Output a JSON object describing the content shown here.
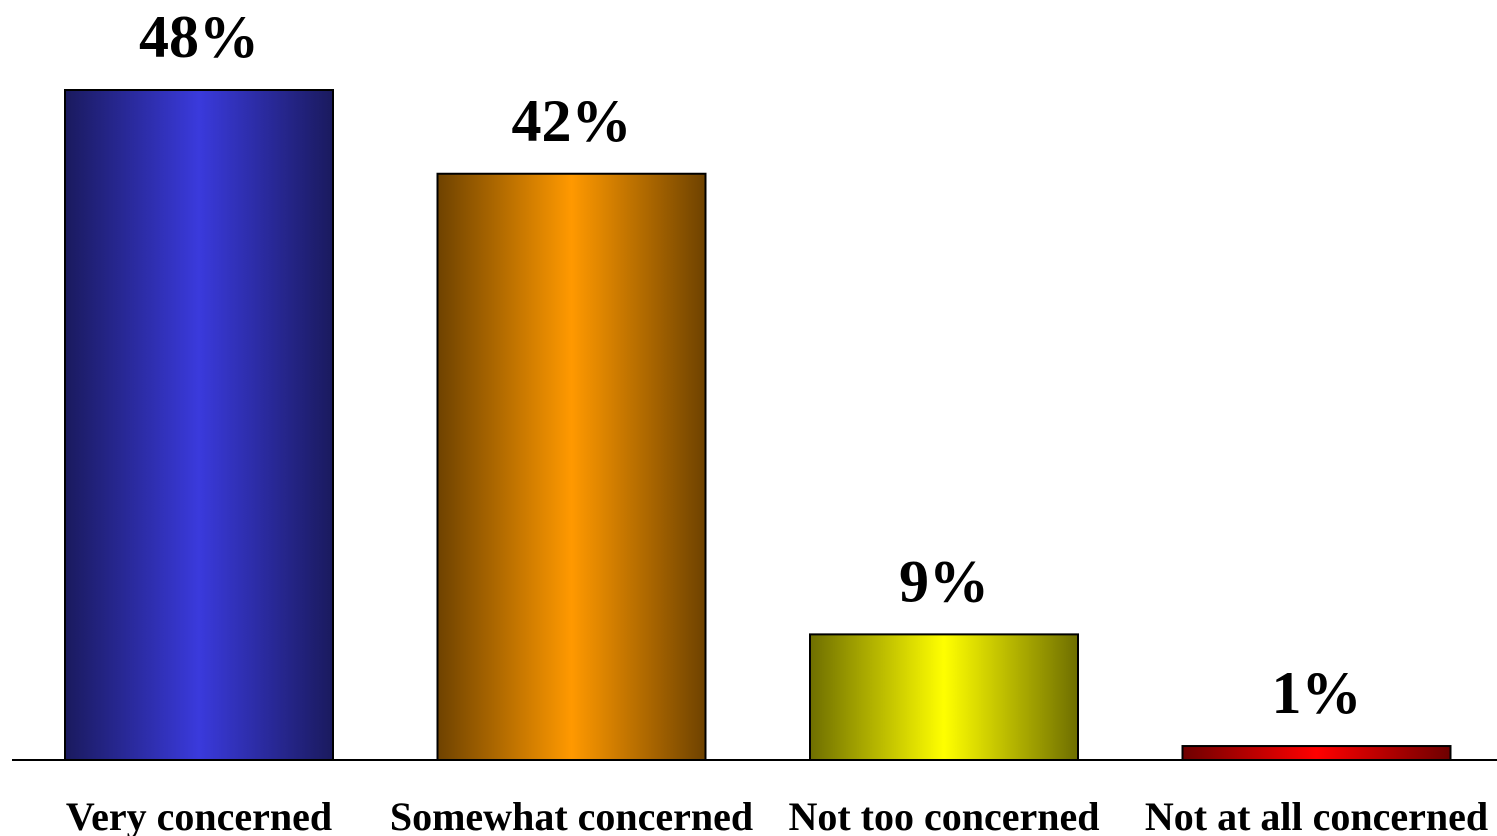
{
  "chart_data": {
    "type": "bar",
    "title": "",
    "xlabel": "",
    "ylabel": "",
    "ylim": [
      0,
      48
    ],
    "categories": [
      "Very concerned",
      "Somewhat concerned",
      "Not too concerned",
      "Not at all concerned"
    ],
    "values": [
      48,
      42,
      9,
      1
    ],
    "value_labels": [
      "48%",
      "42%",
      "9%",
      "1%"
    ],
    "colors": [
      {
        "edge": "#1a1a5e",
        "center": "#3a3adc"
      },
      {
        "edge": "#6e4200",
        "center": "#ff9900"
      },
      {
        "edge": "#6e6e00",
        "center": "#ffff00"
      },
      {
        "edge": "#6e0000",
        "center": "#ff0000"
      }
    ],
    "grid": false,
    "legend": "none"
  }
}
